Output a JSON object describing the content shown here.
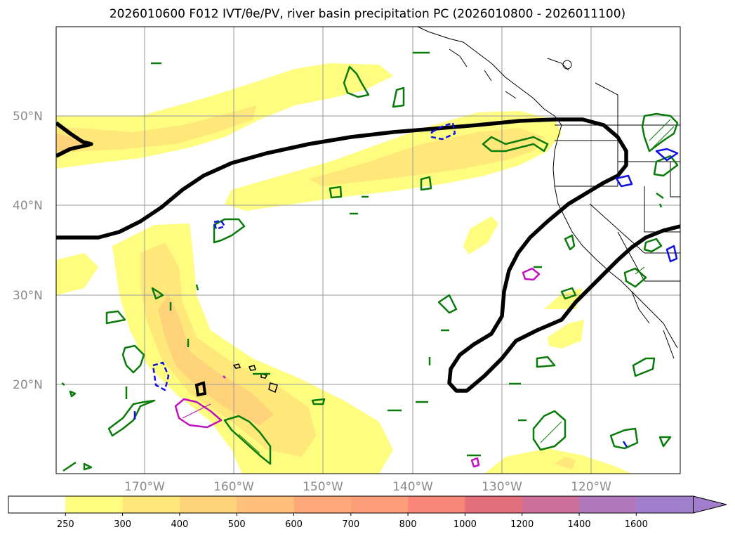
{
  "title": "2026010600 F012 IVT/θe/PV, river basin precipitation PC (2026010800 - 2026011100)",
  "map": {
    "lat_labels": [
      "50°N",
      "40°N",
      "30°N",
      "20°N"
    ],
    "lon_labels": [
      "170°W",
      "160°W",
      "150°W",
      "140°W",
      "130°W",
      "120°W"
    ],
    "layers": {
      "ivt_fill": "IVT shading (kg m-1 s-1)",
      "thick_contour": "black contour",
      "green_contours": "green contours",
      "blue_contours": "blue contours (dashed/solid)",
      "magenta_contours": "magenta contours"
    },
    "colors": {
      "ivt_250": "#fefd80",
      "ivt_300": "#fee87a",
      "ivt_400": "#fed37a",
      "contour_black": "#000000",
      "contour_green": "#0a7a0a",
      "contour_blue": "#1010e6",
      "contour_magenta": "#c010c0",
      "coast": "#000000",
      "grid": "#9a9a9a"
    }
  },
  "colorbar": {
    "labels": [
      "250",
      "300",
      "400",
      "500",
      "600",
      "700",
      "800",
      "1000",
      "1200",
      "1400",
      "1600"
    ],
    "colors": [
      "#ffffff",
      "#fefd80",
      "#fee87a",
      "#fed37a",
      "#fec07a",
      "#fea97a",
      "#fd9e7a",
      "#f88679",
      "#e4707d",
      "#cc7099",
      "#b177bb",
      "#a07ecc"
    ]
  }
}
